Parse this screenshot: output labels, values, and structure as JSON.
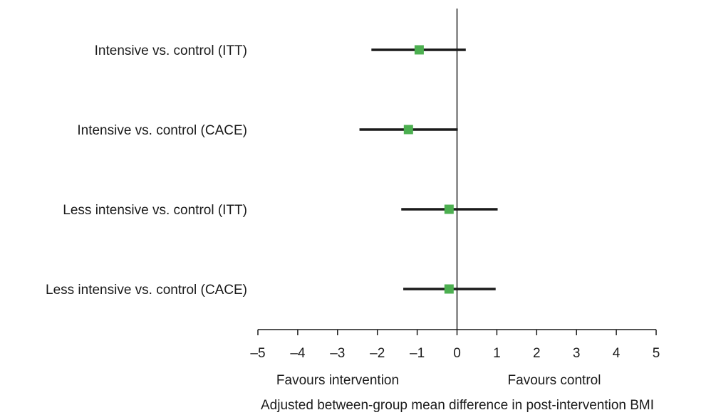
{
  "chart_data": {
    "type": "forest",
    "title": "",
    "xlabel": "Adjusted between-group mean difference in post-intervention BMI",
    "ylabel": "",
    "xlim": [
      -5,
      5
    ],
    "xticks": [
      -5,
      -4,
      -3,
      -2,
      -1,
      0,
      1,
      2,
      3,
      4,
      5
    ],
    "xtick_labels": [
      "–5",
      "–4",
      "–3",
      "–2",
      "–1",
      "0",
      "1",
      "2",
      "3",
      "4",
      "5"
    ],
    "favours_left": "Favours intervention",
    "favours_right": "Favours control",
    "reference_line": 0,
    "grid": false,
    "rows": [
      {
        "label": "Intensive vs. control (ITT)",
        "estimate": -0.95,
        "lower": -2.15,
        "upper": 0.22
      },
      {
        "label": "Intensive vs. control (CACE)",
        "estimate": -1.22,
        "lower": -2.45,
        "upper": 0.02
      },
      {
        "label": "Less intensive vs. control (ITT)",
        "estimate": -0.2,
        "lower": -1.4,
        "upper": 1.02
      },
      {
        "label": "Less intensive vs. control (CACE)",
        "estimate": -0.2,
        "lower": -1.35,
        "upper": 0.97
      }
    ],
    "colors": {
      "marker": "#4caf50",
      "whisker": "#1a1a1a",
      "axis": "#1a1a1a"
    }
  }
}
